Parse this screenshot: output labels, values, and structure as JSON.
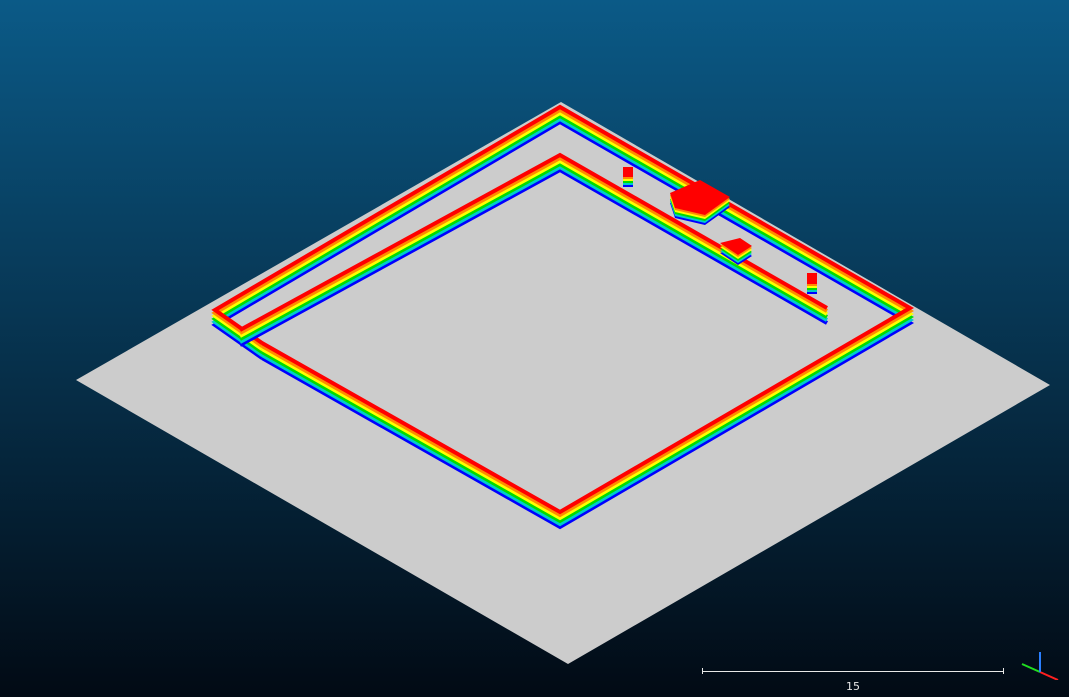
{
  "viewer": {
    "background_top": "#0b5a87",
    "background_bottom": "#020a14",
    "ground_color": "#cccccc",
    "wall_palette": [
      "#ff0000",
      "#ff8c00",
      "#ffff00",
      "#00dd00",
      "#00cccc",
      "#0000ff"
    ]
  },
  "scale_bar": {
    "label": "15"
  },
  "axis_gizmo": {
    "x_color": "#ff2020",
    "y_color": "#20dd20",
    "z_color": "#2a7fff"
  }
}
